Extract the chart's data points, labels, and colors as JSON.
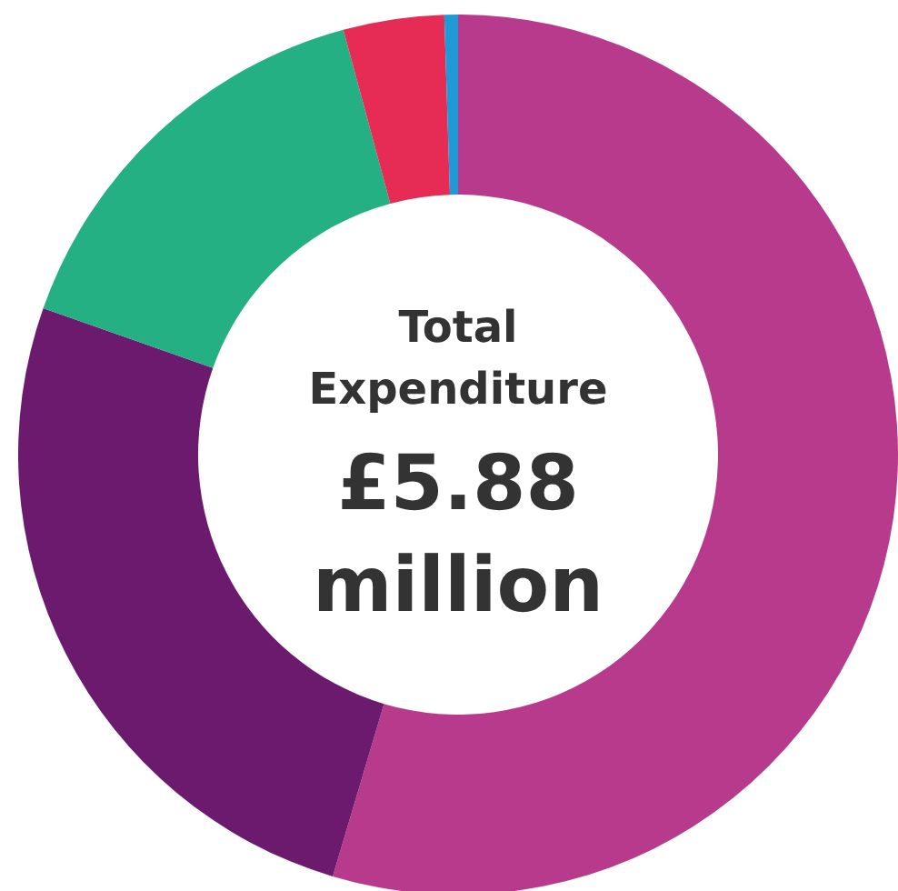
{
  "chart_data": {
    "type": "donut",
    "title": "Total Expenditure",
    "subtitle": "£5.88 million",
    "categories": [
      null,
      null,
      null,
      null,
      null
    ],
    "values": [
      54.6,
      25.8,
      15.4,
      3.7,
      0.5
    ],
    "colors": [
      "#b83a8c",
      "#6b1a6e",
      "#25b084",
      "#e62b55",
      "#1f9ad6"
    ]
  }
}
